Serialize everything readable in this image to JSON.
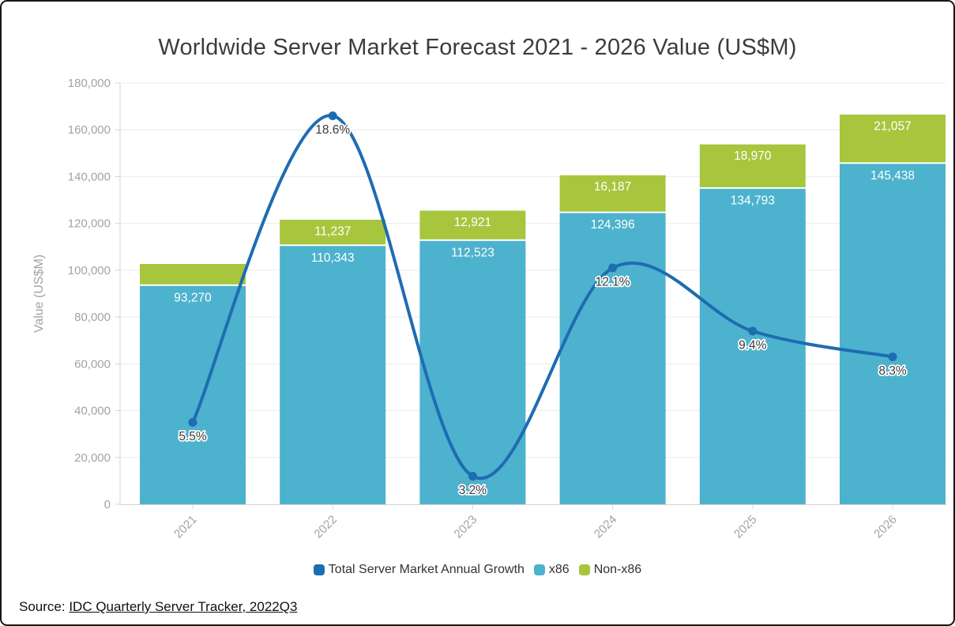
{
  "chart_data": {
    "type": "combo-stacked-bar-line",
    "title": "Worldwide Server Market Forecast 2021 - 2026 Value (US$M)",
    "ylabel": "Value (US$M)",
    "xlabel": "",
    "categories": [
      "2021",
      "2022",
      "2023",
      "2024",
      "2025",
      "2026"
    ],
    "series": [
      {
        "name": "x86",
        "type": "bar",
        "stack": "total",
        "color": "#4db2cd",
        "values": [
          93270,
          110343,
          112523,
          124396,
          134793,
          145438
        ],
        "data_labels": [
          "93,270",
          "110,343",
          "112,523",
          "124,396",
          "134,793",
          "145,438"
        ]
      },
      {
        "name": "Non-x86",
        "type": "bar",
        "stack": "total",
        "color": "#a7c63e",
        "values": [
          9400,
          11237,
          12921,
          16187,
          18970,
          21057
        ],
        "data_labels": [
          null,
          "11,237",
          "12,921",
          "16,187",
          "18,970",
          "21,057"
        ],
        "note": "2021 segment shown without data label; value estimated from bar height"
      },
      {
        "name": "Total Server Market Annual Growth",
        "type": "line",
        "color": "#1e6cb2",
        "unit": "%",
        "values": [
          5.5,
          18.6,
          3.2,
          12.1,
          9.4,
          8.3
        ],
        "data_labels": [
          "5.5%",
          "18.6%",
          "3.2%",
          "12.1%",
          "9.4%",
          "8.3%"
        ]
      }
    ],
    "y_axis": {
      "min": 0,
      "max": 180000,
      "step": 20000,
      "tick_labels": [
        "0",
        "20,000",
        "40,000",
        "60,000",
        "80,000",
        "100,000",
        "120,000",
        "140,000",
        "160,000",
        "180,000"
      ]
    },
    "secondary_y_axis": {
      "visible": false,
      "min_pct": 2,
      "max_pct": 20,
      "unit": "%"
    },
    "grid": "horizontal",
    "x_label_rotation": 45,
    "legend_position": "bottom",
    "colors": {
      "grid_line": "#ececec",
      "axis_line": "#d4d4d4",
      "axis_text": "#a3a3a3",
      "bar_label_text": "#ffffff",
      "line_label_text": "#3b3b3b",
      "title_text": "#3c3c3c"
    }
  },
  "legend": [
    {
      "label": "Total Server Market Annual Growth",
      "color": "#1e6cb2"
    },
    {
      "label": "x86",
      "color": "#4db2cd"
    },
    {
      "label": "Non-x86",
      "color": "#a7c63e"
    }
  ],
  "source": {
    "prefix": "Source: ",
    "link_text": "IDC Quarterly Server Tracker, 2022Q3"
  }
}
